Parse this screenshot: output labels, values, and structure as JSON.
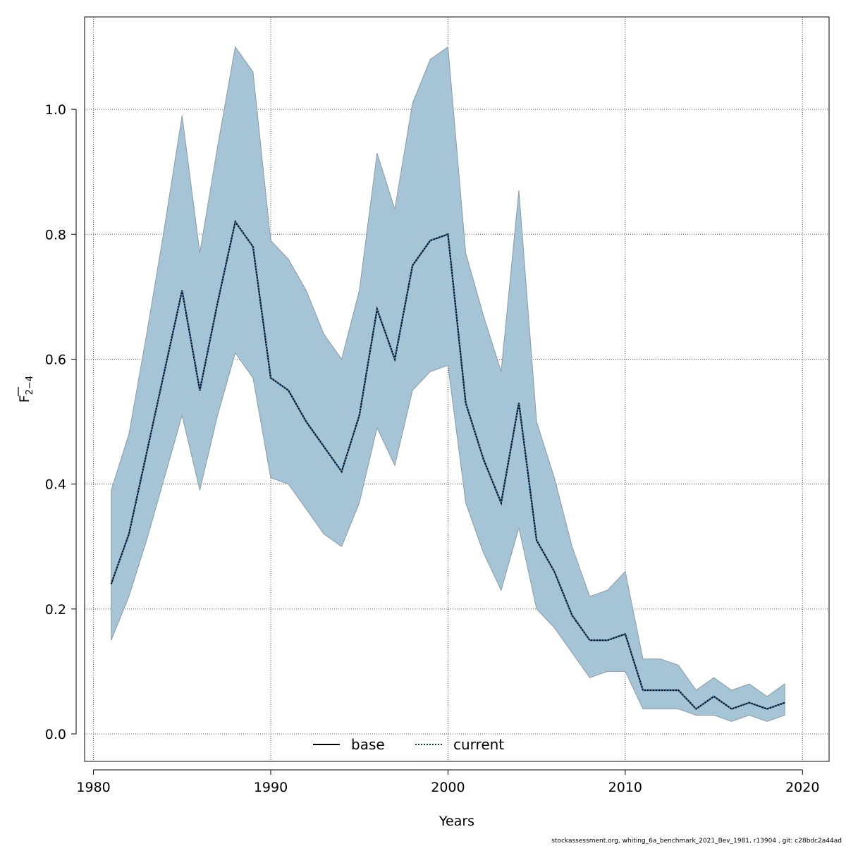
{
  "chart_data": {
    "type": "line",
    "xlabel": "Years",
    "ylabel_main": "F",
    "ylabel_sub": "2−4",
    "xlim": [
      1979.5,
      2021.5
    ],
    "ylim": [
      -0.044,
      1.148
    ],
    "x_ticks": [
      1980,
      1990,
      2000,
      2010,
      2020
    ],
    "y_ticks": [
      0.0,
      0.2,
      0.4,
      0.6,
      0.8,
      1.0
    ],
    "y_tick_labels": [
      "0.0",
      "0.2",
      "0.4",
      "0.6",
      "0.8",
      "1.0"
    ],
    "grid": true,
    "legend_position": "bottom-center",
    "colors": {
      "band_fill": "#a5c4d6",
      "band_stroke": "#8a9ba6",
      "current_line": "#0a3a5c",
      "base_line": "#000000",
      "grid": "#555555"
    },
    "x": [
      1981,
      1982,
      1983,
      1984,
      1985,
      1986,
      1987,
      1988,
      1989,
      1990,
      1991,
      1992,
      1993,
      1994,
      1995,
      1996,
      1997,
      1998,
      1999,
      2000,
      2001,
      2002,
      2003,
      2004,
      2005,
      2006,
      2007,
      2008,
      2009,
      2010,
      2011,
      2012,
      2013,
      2014,
      2015,
      2016,
      2017,
      2018,
      2019
    ],
    "confidence_band": {
      "upper": [
        0.39,
        0.48,
        0.64,
        0.81,
        0.99,
        0.77,
        0.94,
        1.1,
        1.06,
        0.79,
        0.76,
        0.71,
        0.64,
        0.6,
        0.71,
        0.93,
        0.84,
        1.01,
        1.08,
        1.1,
        0.77,
        0.67,
        0.58,
        0.87,
        0.5,
        0.41,
        0.3,
        0.22,
        0.23,
        0.26,
        0.12,
        0.12,
        0.11,
        0.07,
        0.09,
        0.07,
        0.08,
        0.06,
        0.08
      ],
      "lower": [
        0.15,
        0.22,
        0.31,
        0.41,
        0.51,
        0.39,
        0.51,
        0.61,
        0.57,
        0.41,
        0.4,
        0.36,
        0.32,
        0.3,
        0.37,
        0.49,
        0.43,
        0.55,
        0.58,
        0.59,
        0.37,
        0.29,
        0.23,
        0.33,
        0.2,
        0.17,
        0.13,
        0.09,
        0.1,
        0.1,
        0.04,
        0.04,
        0.04,
        0.03,
        0.03,
        0.02,
        0.03,
        0.02,
        0.03
      ]
    },
    "series": [
      {
        "name": "current",
        "style": "dotted",
        "values": [
          0.24,
          0.32,
          0.45,
          0.58,
          0.71,
          0.55,
          0.69,
          0.82,
          0.78,
          0.57,
          0.55,
          0.5,
          0.46,
          0.42,
          0.51,
          0.68,
          0.6,
          0.75,
          0.79,
          0.8,
          0.53,
          0.44,
          0.37,
          0.53,
          0.31,
          0.26,
          0.19,
          0.15,
          0.15,
          0.16,
          0.07,
          0.07,
          0.07,
          0.04,
          0.06,
          0.04,
          0.05,
          0.04,
          0.05
        ]
      }
    ],
    "legend": [
      {
        "label": "base",
        "style": "solid"
      },
      {
        "label": "current",
        "style": "dotted"
      }
    ]
  },
  "footer_text": "stockassessment.org, whiting_6a_benchmark_2021_Bev_1981, r13904 , git: c28bdc2a44ad"
}
